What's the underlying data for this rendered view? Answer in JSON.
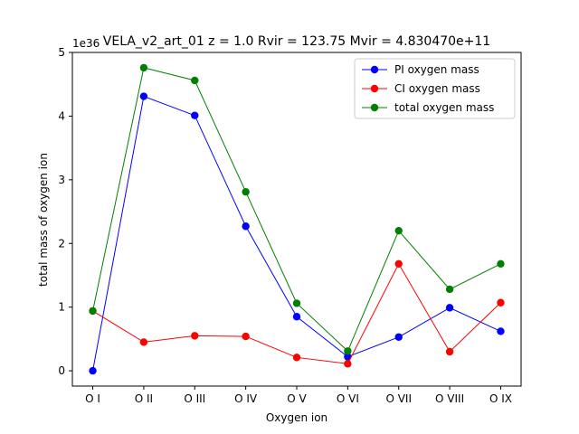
{
  "chart_data": {
    "type": "line",
    "title": "VELA_v2_art_01 z = 1.0 Rvir = 123.75 Mvir = 4.830470e+11",
    "xlabel": "Oxygen ion",
    "ylabel": "total mass of oxygen ion",
    "offset_label": "1e36",
    "categories": [
      "O I",
      "O II",
      "O III",
      "O IV",
      "O V",
      "O VI",
      "O VII",
      "O VIII",
      "O IX"
    ],
    "ylim": [
      -0.24,
      5.0
    ],
    "yticks": [
      0,
      1,
      2,
      3,
      4,
      5
    ],
    "legend_position": "upper-right",
    "grid": false,
    "series": [
      {
        "name": "PI oxygen mass",
        "color": "#0000ff",
        "values": [
          0.0,
          4.31,
          4.01,
          2.27,
          0.85,
          0.22,
          0.53,
          0.99,
          0.62
        ]
      },
      {
        "name": "CI oxygen mass",
        "color": "#ff0000",
        "values": [
          0.94,
          0.45,
          0.55,
          0.54,
          0.21,
          0.11,
          1.68,
          0.3,
          1.07
        ]
      },
      {
        "name": "total oxygen mass",
        "color": "#008000",
        "values": [
          0.94,
          4.76,
          4.56,
          2.81,
          1.06,
          0.31,
          2.2,
          1.28,
          1.68
        ]
      }
    ]
  }
}
